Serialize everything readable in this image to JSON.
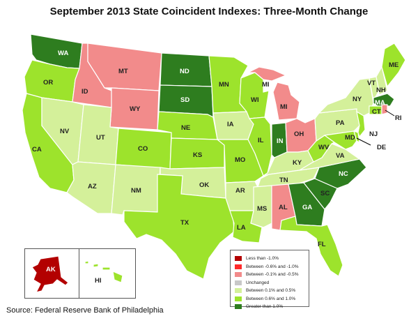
{
  "title": "September 2013 State Coincident Indexes: Three-Month Change",
  "source": "Source: Federal Reserve Bank of Philadelphia",
  "colors": {
    "lt_neg1": "#b30000",
    "neg06_neg1": "#ff2a2a",
    "neg01_neg05": "#f28b8b",
    "unchanged": "#c8c8c8",
    "p01_p05": "#d4f09a",
    "p06_p1": "#9de32c",
    "gt_p1": "#2e7d1f"
  },
  "legend": [
    {
      "label": "Less than -1.0%",
      "color_key": "lt_neg1"
    },
    {
      "label": "Between -0.6% and -1.0%",
      "color_key": "neg06_neg1"
    },
    {
      "label": "Between -0.1% and -0.5%",
      "color_key": "neg01_neg05"
    },
    {
      "label": "Unchanged",
      "color_key": "unchanged"
    },
    {
      "label": "Between 0.1% and 0.5%",
      "color_key": "p01_p05"
    },
    {
      "label": "Between 0.6% and 1.0%",
      "color_key": "p06_p1"
    },
    {
      "label": "Greater than 1.0%",
      "color_key": "gt_p1"
    }
  ],
  "states": {
    "WA": "gt_p1",
    "OR": "p06_p1",
    "CA": "p06_p1",
    "ID": "neg01_neg05",
    "NV": "p01_p05",
    "MT": "neg01_neg05",
    "WY": "neg01_neg05",
    "UT": "p01_p05",
    "AZ": "p01_p05",
    "CO": "p06_p1",
    "NM": "p01_p05",
    "ND": "gt_p1",
    "SD": "gt_p1",
    "NE": "p06_p1",
    "KS": "p06_p1",
    "OK": "p01_p05",
    "TX": "p06_p1",
    "MN": "p06_p1",
    "IA": "p01_p05",
    "MO": "p06_p1",
    "AR": "p01_p05",
    "LA": "p06_p1",
    "WI": "p06_p1",
    "IL": "p06_p1",
    "MI": "neg01_neg05",
    "IN": "gt_p1",
    "OH": "neg01_neg05",
    "KY": "p01_p05",
    "TN": "p01_p05",
    "MS": "p01_p05",
    "AL": "neg01_neg05",
    "GA": "gt_p1",
    "FL": "p06_p1",
    "SC": "gt_p1",
    "NC": "gt_p1",
    "VA": "p01_p05",
    "WV": "p06_p1",
    "PA": "p01_p05",
    "NY": "p01_p05",
    "VT": "p01_p05",
    "NH": "p01_p05",
    "ME": "p06_p1",
    "MA": "gt_p1",
    "RI": "neg01_neg05",
    "CT": "p06_p1",
    "NJ": "p06_p1",
    "DE": "p06_p1",
    "MD": "p06_p1",
    "AK": "lt_neg1",
    "HI": "p06_p1"
  }
}
